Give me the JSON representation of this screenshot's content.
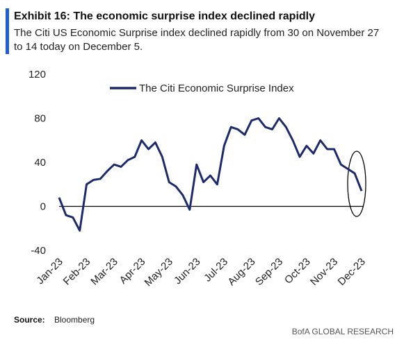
{
  "chart_data": {
    "type": "line",
    "title": "Exhibit 16: The economic surprise index declined rapidly",
    "subtitle": "The Citi US Economic Surprise index declined rapidly from 30 on November 27 to 14 today on December 5.",
    "source_label": "Source:",
    "source": "Bloomberg",
    "footer": "BofA GLOBAL RESEARCH",
    "categories": [
      "Jan-23",
      null,
      null,
      null,
      "Feb-23",
      null,
      null,
      null,
      "Mar-23",
      null,
      null,
      null,
      "Apr-23",
      null,
      null,
      null,
      "May-23",
      null,
      null,
      null,
      "Jun-23",
      null,
      null,
      null,
      "Jul-23",
      null,
      null,
      null,
      "Aug-23",
      null,
      null,
      null,
      "Sep-23",
      null,
      null,
      null,
      "Oct-23",
      null,
      null,
      null,
      "Nov-23",
      null,
      null,
      null,
      "Dec-23"
    ],
    "series": [
      {
        "name": "The Citi Economic Surprise Index",
        "color": "#1c2a6e",
        "values": [
          8,
          -8,
          -10,
          -22,
          20,
          24,
          25,
          32,
          38,
          36,
          42,
          45,
          60,
          52,
          58,
          45,
          22,
          18,
          10,
          -3,
          38,
          22,
          28,
          20,
          55,
          72,
          70,
          65,
          78,
          80,
          72,
          70,
          80,
          72,
          60,
          45,
          55,
          48,
          60,
          52,
          52,
          38,
          34,
          30,
          14
        ]
      }
    ],
    "ylim": [
      -40,
      120
    ],
    "yticks": [
      -40,
      0,
      40,
      80,
      120
    ],
    "legend": "top"
  }
}
